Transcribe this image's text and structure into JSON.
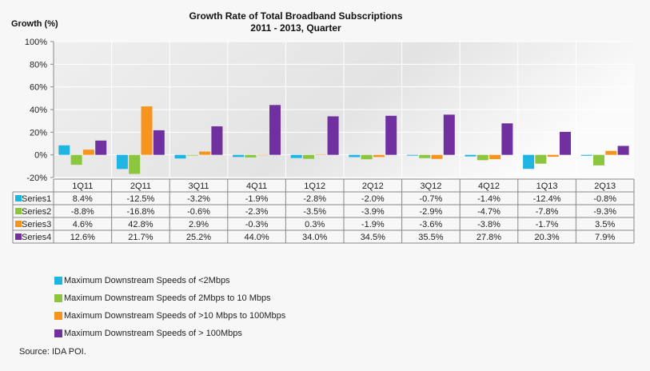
{
  "chart_data": {
    "type": "bar",
    "title": "Growth Rate of Total Broadband Subscriptions",
    "subtitle": "2011 - 2013, Quarter",
    "ylabel": "Growth (%)",
    "xlabel": "",
    "ylim": [
      -20,
      100
    ],
    "yticks": [
      "100%",
      "80%",
      "60%",
      "40%",
      "20%",
      "0%",
      "-20%"
    ],
    "grid": true,
    "data_table": true,
    "categories": [
      "1Q11",
      "2Q11",
      "3Q11",
      "4Q11",
      "1Q12",
      "2Q12",
      "3Q12",
      "4Q12",
      "1Q13",
      "2Q13"
    ],
    "series": [
      {
        "name": "Series1",
        "color": "#1fb5e3",
        "values": [
          8.4,
          -12.5,
          -3.2,
          -1.9,
          -2.8,
          -2.0,
          -0.7,
          -1.4,
          -12.4,
          -0.8
        ]
      },
      {
        "name": "Series2",
        "color": "#8cc63e",
        "values": [
          -8.8,
          -16.8,
          -0.6,
          -2.3,
          -3.5,
          -3.9,
          -2.9,
          -4.7,
          -7.8,
          -9.3
        ]
      },
      {
        "name": "Series3",
        "color": "#f7941d",
        "values": [
          4.6,
          42.8,
          2.9,
          -0.3,
          0.3,
          -1.9,
          -3.6,
          -3.8,
          -1.7,
          3.5
        ]
      },
      {
        "name": "Series4",
        "color": "#7030a0",
        "values": [
          12.6,
          21.7,
          25.2,
          44.0,
          34.0,
          34.5,
          35.5,
          27.8,
          20.3,
          7.9
        ]
      }
    ]
  },
  "legend": [
    "Maximum Downstream Speeds of  <2Mbps",
    "Maximum Downstream Speeds of  2Mbps to 10 Mbps",
    "Maximum Downstream Speeds of  >10 Mbps to 100Mbps",
    "Maximum Downstream Speeds of > 100Mbps"
  ],
  "source": "Source: IDA POI."
}
